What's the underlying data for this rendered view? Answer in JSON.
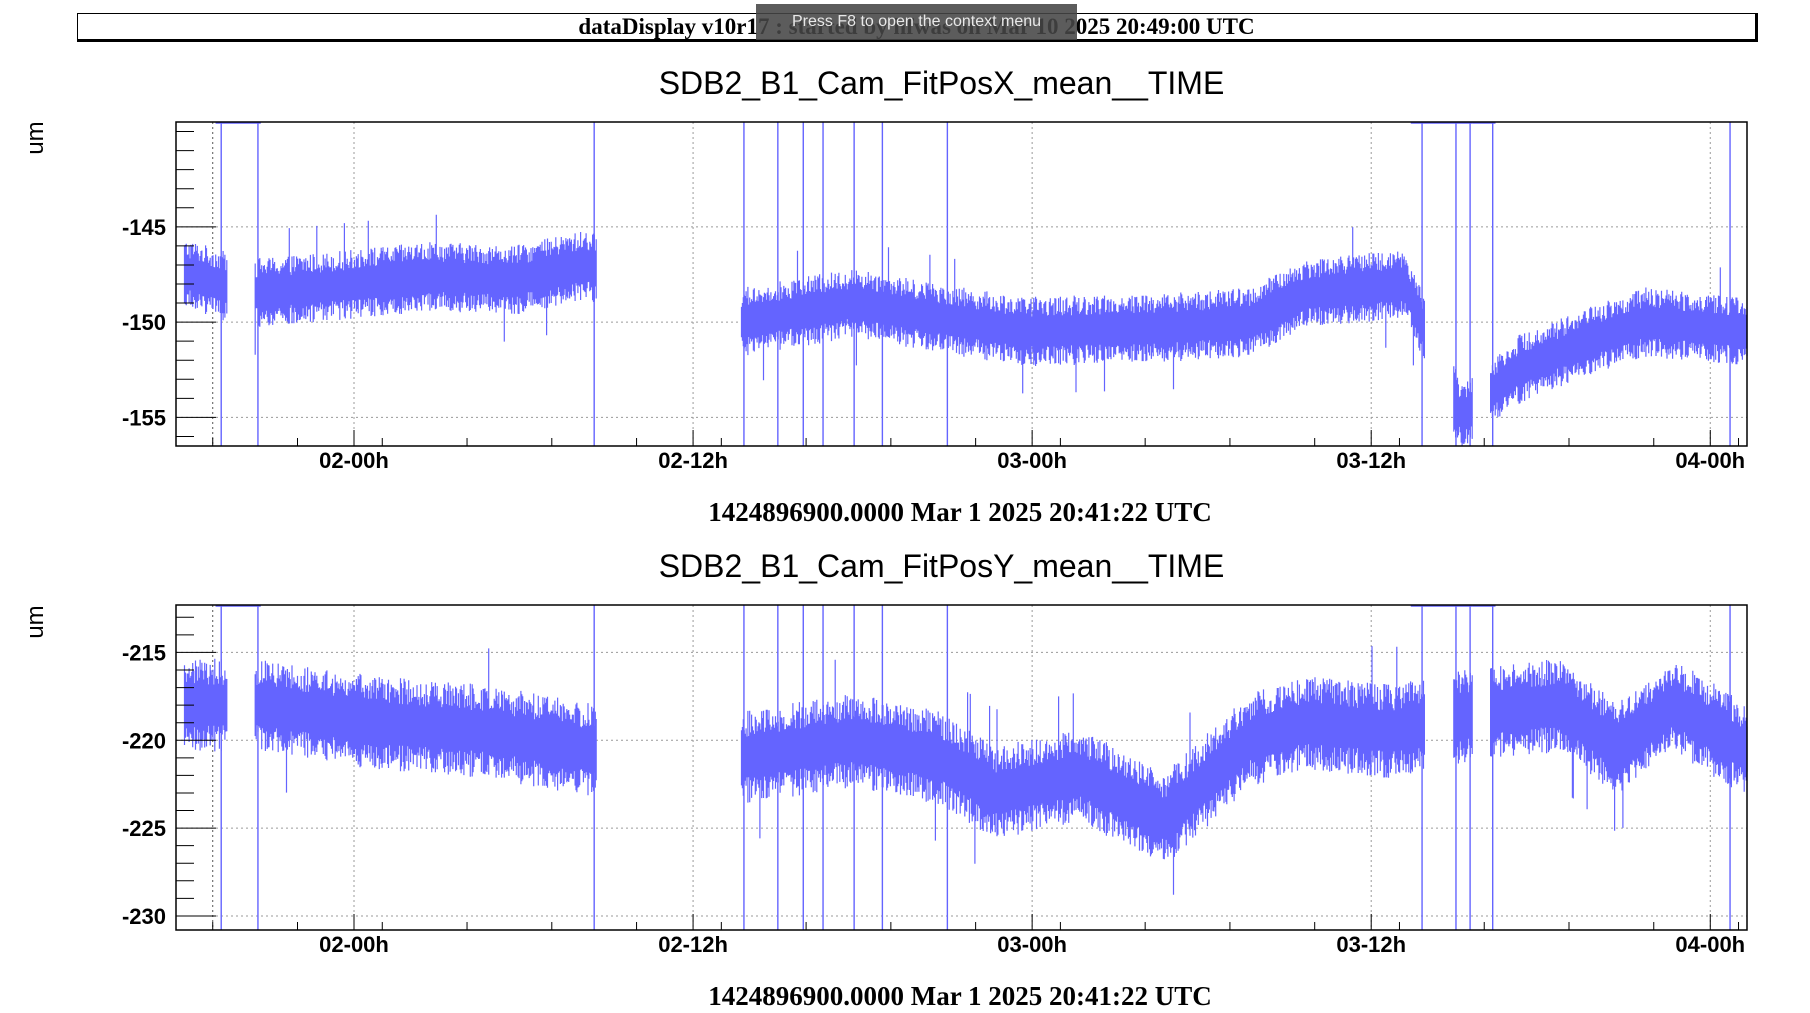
{
  "header": {
    "title": "dataDisplay v10r17 : started by hfwas on Mar 10 2025 20:49:00 UTC",
    "tooltip": "Press F8 to open the context menu"
  },
  "style": {
    "trace_color": "#6464ff",
    "grid_color": "#9a9a9a"
  },
  "chart_data": [
    {
      "type": "line",
      "title": "SDB2_B1_Cam_FitPosX_mean__TIME",
      "ylabel": "um",
      "xlabel": "1424896900.0000 Mar 1 2025 20:41:22 UTC",
      "x_ticks": [
        "02-00h",
        "02-12h",
        "03-00h",
        "03-12h",
        "04-00h"
      ],
      "y_ticks": [
        -145,
        -150,
        -155
      ],
      "ylim": [
        -156.5,
        -139.5
      ],
      "xlim_hours": [
        21.0,
        76.6
      ],
      "grid": true,
      "series": [
        {
          "values_summary": [
            {
              "x": 21.5,
              "y": -147.5
            },
            {
              "x": 23.5,
              "y": -148.5
            },
            {
              "x": 26,
              "y": -148.2
            },
            {
              "x": 30,
              "y": -147.6
            },
            {
              "x": 33,
              "y": -147.8
            },
            {
              "x": 35.5,
              "y": -147.0
            },
            {
              "x": 41,
              "y": -150.0
            },
            {
              "x": 45,
              "y": -149.0
            },
            {
              "x": 48,
              "y": -149.8
            },
            {
              "x": 51,
              "y": -150.5
            },
            {
              "x": 56,
              "y": -150.3
            },
            {
              "x": 59,
              "y": -150.0
            },
            {
              "x": 61,
              "y": -148.5
            },
            {
              "x": 64.5,
              "y": -148.0
            },
            {
              "x": 66.5,
              "y": -155.0
            },
            {
              "x": 68.5,
              "y": -152.5
            },
            {
              "x": 71,
              "y": -151.0
            },
            {
              "x": 73,
              "y": -150.0
            },
            {
              "x": 76.5,
              "y": -150.5
            }
          ]
        }
      ]
    },
    {
      "type": "line",
      "title": "SDB2_B1_Cam_FitPosY_mean__TIME",
      "ylabel": "um",
      "xlabel": "1424896900.0000 Mar 1 2025 20:41:22 UTC",
      "x_ticks": [
        "02-00h",
        "02-12h",
        "03-00h",
        "03-12h",
        "04-00h"
      ],
      "y_ticks": [
        -215,
        -220,
        -225,
        -230
      ],
      "ylim": [
        -230.8,
        -212.3
      ],
      "xlim_hours": [
        21.0,
        76.6
      ],
      "grid": true,
      "series": [
        {
          "values_summary": [
            {
              "x": 21.5,
              "y": -218.0
            },
            {
              "x": 24,
              "y": -218.0
            },
            {
              "x": 28,
              "y": -219.0
            },
            {
              "x": 32,
              "y": -219.5
            },
            {
              "x": 35.5,
              "y": -220.5
            },
            {
              "x": 41,
              "y": -221.0
            },
            {
              "x": 45,
              "y": -220.0
            },
            {
              "x": 48,
              "y": -221.0
            },
            {
              "x": 50,
              "y": -223.0
            },
            {
              "x": 53,
              "y": -222.0
            },
            {
              "x": 56,
              "y": -224.5
            },
            {
              "x": 59,
              "y": -220.0
            },
            {
              "x": 61,
              "y": -219.0
            },
            {
              "x": 64,
              "y": -219.5
            },
            {
              "x": 67,
              "y": -218.5
            },
            {
              "x": 70,
              "y": -218.0
            },
            {
              "x": 72,
              "y": -220.5
            },
            {
              "x": 74,
              "y": -218.0
            },
            {
              "x": 76.5,
              "y": -220.5
            }
          ]
        }
      ]
    }
  ]
}
